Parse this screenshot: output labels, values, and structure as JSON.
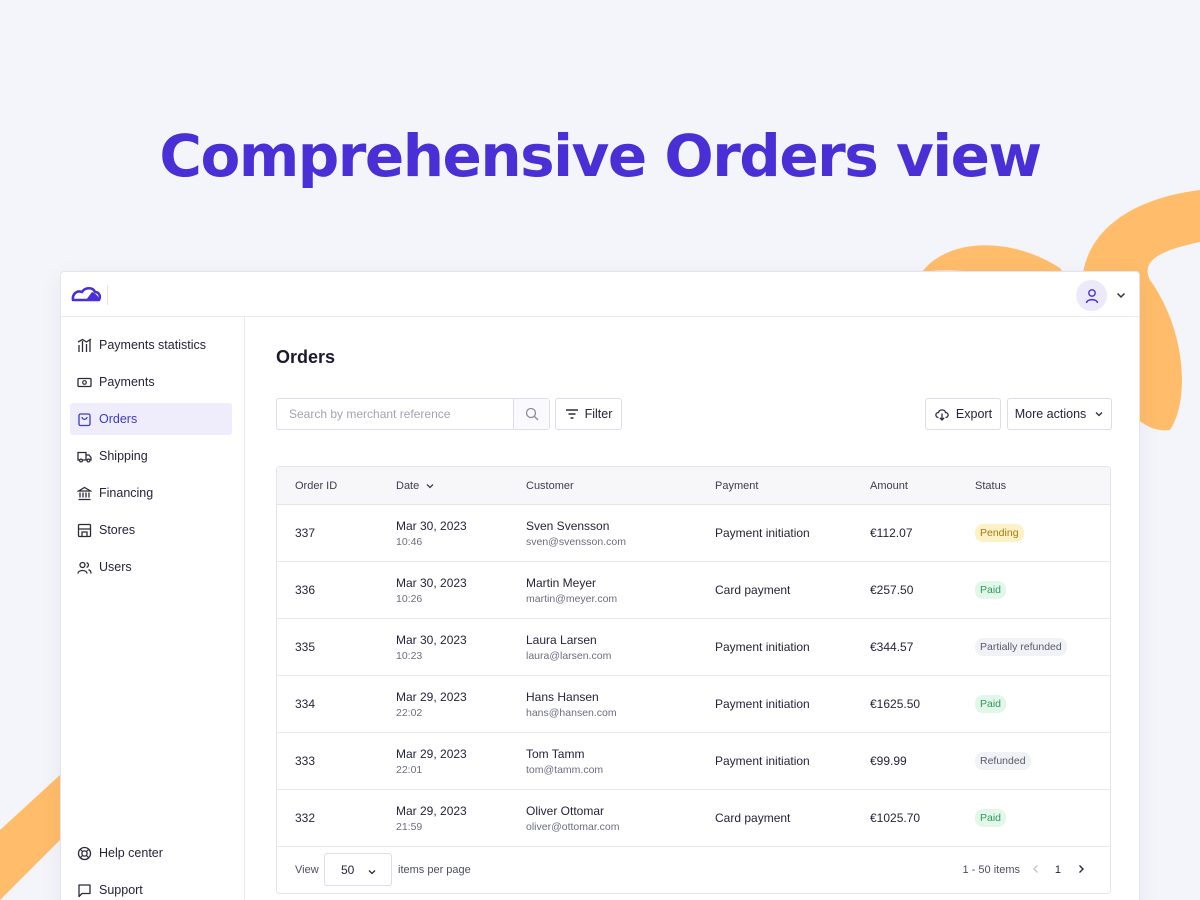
{
  "headline": "Comprehensive Orders view",
  "colors": {
    "brand": "#4a2fd6",
    "accent_blob": "#ffbd6b",
    "active_nav_bg": "#efedfc"
  },
  "topbar": {
    "logo": "cloud-logo-icon",
    "user_icon": "user-icon",
    "menu_icon": "chevron-down-icon"
  },
  "sidebar": {
    "items": [
      {
        "label": "Payments statistics",
        "icon": "bar-chart-icon"
      },
      {
        "label": "Payments",
        "icon": "banknote-icon"
      },
      {
        "label": "Orders",
        "icon": "shopping-bag-icon",
        "active": true
      },
      {
        "label": "Shipping",
        "icon": "truck-icon"
      },
      {
        "label": "Financing",
        "icon": "bank-icon"
      },
      {
        "label": "Stores",
        "icon": "store-icon"
      },
      {
        "label": "Users",
        "icon": "users-icon"
      }
    ],
    "bottom": [
      {
        "label": "Help center",
        "icon": "lifebuoy-icon"
      },
      {
        "label": "Support",
        "icon": "chat-icon"
      }
    ]
  },
  "main": {
    "title": "Orders",
    "search_placeholder": "Search by merchant reference",
    "filter_label": "Filter",
    "export_label": "Export",
    "more_actions_label": "More actions"
  },
  "table": {
    "headers": [
      "Order ID",
      "Date",
      "Customer",
      "Payment",
      "Amount",
      "Status"
    ],
    "sorted_column": "Date",
    "rows": [
      {
        "id": "337",
        "date": "Mar 30, 2023",
        "time": "10:46",
        "name": "Sven Svensson",
        "email": "sven@svensson.com",
        "payment": "Payment initiation",
        "amount": "€112.07",
        "status": "Pending",
        "status_kind": "pending"
      },
      {
        "id": "336",
        "date": "Mar 30, 2023",
        "time": "10:26",
        "name": "Martin Meyer",
        "email": "martin@meyer.com",
        "payment": "Card payment",
        "amount": "€257.50",
        "status": "Paid",
        "status_kind": "paid"
      },
      {
        "id": "335",
        "date": "Mar 30, 2023",
        "time": "10:23",
        "name": "Laura Larsen",
        "email": "laura@larsen.com",
        "payment": "Payment initiation",
        "amount": "€344.57",
        "status": "Partially refunded",
        "status_kind": "partial"
      },
      {
        "id": "334",
        "date": "Mar 29, 2023",
        "time": "22:02",
        "name": "Hans Hansen",
        "email": "hans@hansen.com",
        "payment": "Payment initiation",
        "amount": "€1625.50",
        "status": "Paid",
        "status_kind": "paid"
      },
      {
        "id": "333",
        "date": "Mar 29, 2023",
        "time": "22:01",
        "name": "Tom Tamm",
        "email": "tom@tamm.com",
        "payment": "Payment initiation",
        "amount": "€99.99",
        "status": "Refunded",
        "status_kind": "refunded"
      },
      {
        "id": "332",
        "date": "Mar 29, 2023",
        "time": "21:59",
        "name": "Oliver Ottomar",
        "email": "oliver@ottomar.com",
        "payment": "Card payment",
        "amount": "€1025.70",
        "status": "Paid",
        "status_kind": "paid"
      }
    ]
  },
  "pagination": {
    "view_label": "View",
    "per_page": "50",
    "per_page_suffix": "items per page",
    "range": "1 - 50 items",
    "page": "1"
  }
}
